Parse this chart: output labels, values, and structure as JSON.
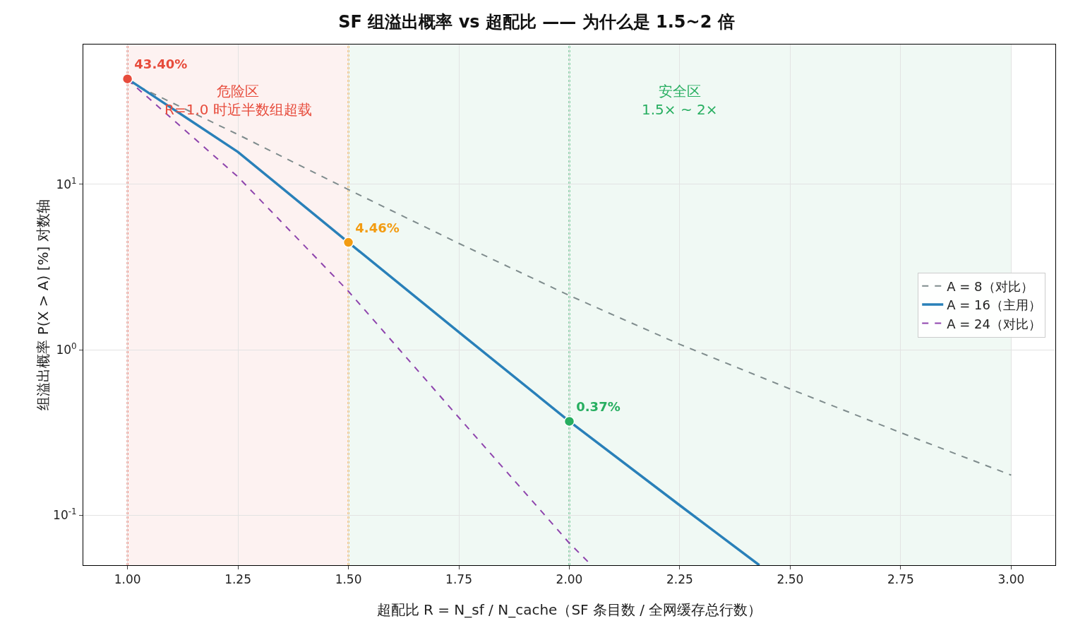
{
  "chart_data": {
    "type": "line",
    "title": "SF 组溢出概率 vs 超配比 —— 为什么是 1.5~2 倍",
    "xlabel": "超配比 R = N_sf / N_cache（SF 条目数 / 全网缓存总行数）",
    "ylabel": "组溢出概率 P(X > A) [%] 对数轴",
    "log": "y",
    "grid": true,
    "legend": "right",
    "marker": "none",
    "xlim": [
      0.9,
      3.1
    ],
    "xticks": [
      {
        "value": 1,
        "label": "1.00"
      },
      {
        "value": 1.25,
        "label": "1.25"
      },
      {
        "value": 1.5,
        "label": "1.50"
      },
      {
        "value": 1.75,
        "label": "1.75"
      },
      {
        "value": 2,
        "label": "2.00"
      },
      {
        "value": 2.25,
        "label": "2.25"
      },
      {
        "value": 2.5,
        "label": "2.50"
      },
      {
        "value": 2.75,
        "label": "2.75"
      },
      {
        "value": 3,
        "label": "3.00"
      }
    ],
    "ylim": [
      0.05,
      70
    ],
    "yticks": [
      {
        "value": 0.1,
        "label": "10$^{-1}$"
      },
      {
        "value": 1,
        "label": "10$^{0}$"
      },
      {
        "value": 10,
        "label": "10$^{1}$"
      }
    ],
    "series": [
      {
        "name": "A = 8（对比）",
        "color": "#7f8c8d",
        "line_style": "dashed",
        "x": [
          1,
          1.25,
          1.5,
          1.75,
          2,
          2.25,
          2.5,
          2.75,
          3
        ],
        "values": [
          42,
          20,
          9.3,
          4.4,
          2.13,
          1.08,
          0.58,
          0.316,
          0.175
        ]
      },
      {
        "name": "A = 16（主用）",
        "color": "#2980b9",
        "line_style": "solid",
        "x": [
          1,
          1.25,
          1.5,
          1.75,
          2,
          2.25,
          2.43
        ],
        "values": [
          43.4,
          15.7,
          4.46,
          1.28,
          0.37,
          0.115,
          0.05
        ]
      },
      {
        "name": "A = 24（对比）",
        "color": "#8e44ad",
        "line_style": "dashed",
        "x": [
          1,
          1.25,
          1.5,
          1.75,
          2,
          2.05
        ],
        "values": [
          43,
          11.1,
          2.26,
          0.39,
          0.068,
          0.05
        ]
      },
      {
        "type": "scatter",
        "marker": "circle",
        "x": [
          1,
          1.5,
          2
        ],
        "values": [
          43.4,
          4.46,
          0.37
        ],
        "colors": [
          "#e74c3c",
          "#f39c12",
          "#27ae60"
        ],
        "value_labels": [
          "43.40%",
          "4.46%",
          "0.37%"
        ]
      }
    ],
    "ref_lines": [
      {
        "axis": "x",
        "value": 1,
        "color": "#e74c3c",
        "line_style": "dotted"
      },
      {
        "axis": "x",
        "value": 1.5,
        "color": "#f39c12",
        "line_style": "dotted"
      },
      {
        "axis": "x",
        "value": 2,
        "color": "#27ae60",
        "line_style": "dotted"
      }
    ],
    "bands": [
      {
        "axis": "x",
        "from": 1,
        "to": 1.5,
        "color": "#e74c3c",
        "label": "危险区\nR=1.0 时近半数组超载"
      },
      {
        "axis": "x",
        "from": 1.5,
        "to": 3,
        "color": "#27ae60",
        "label": "安全区\n1.5× ~ 2×"
      }
    ]
  }
}
